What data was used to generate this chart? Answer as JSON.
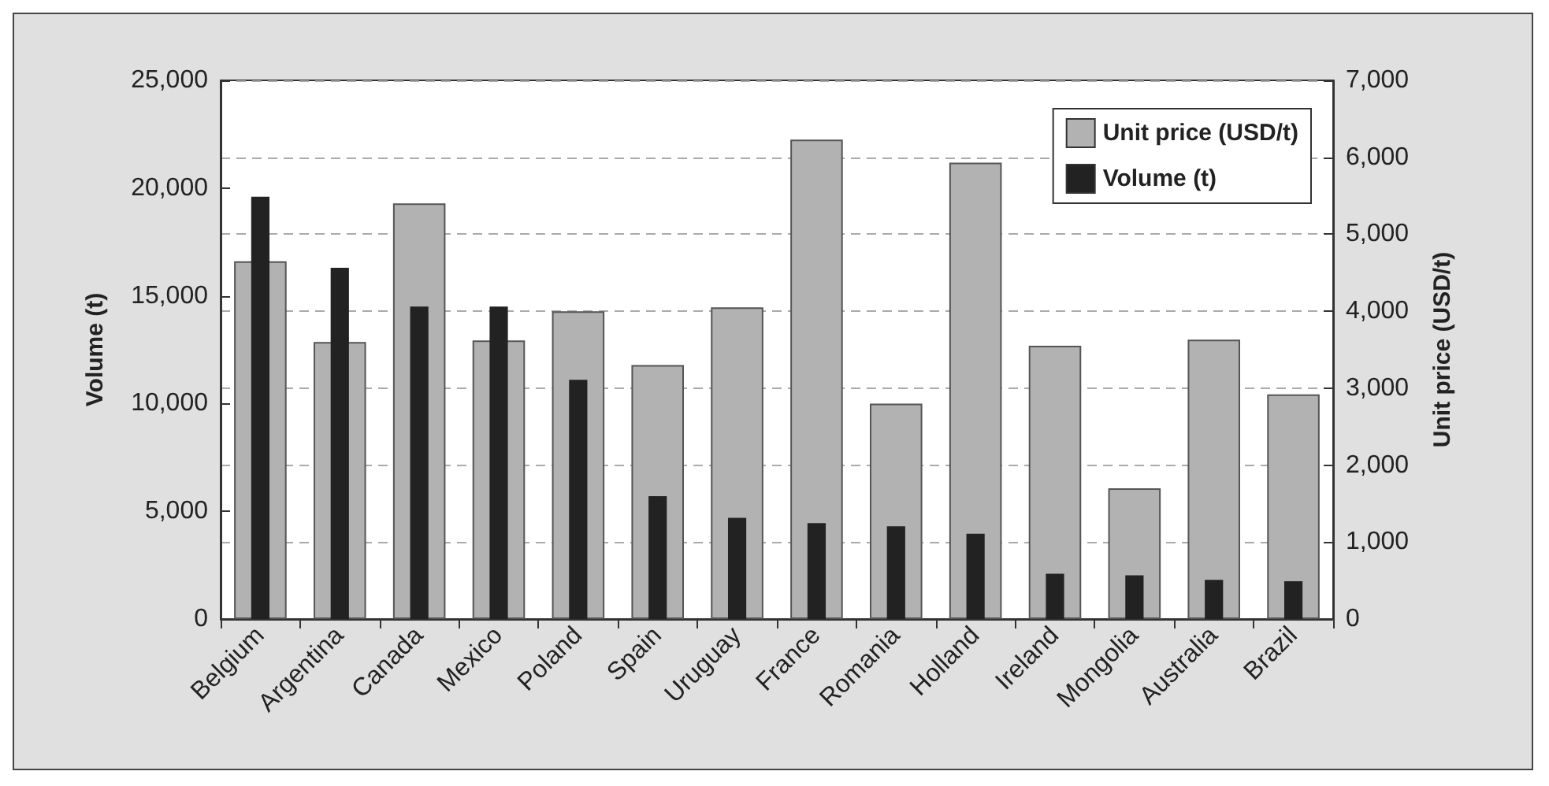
{
  "chart_data": {
    "type": "bar",
    "ylabel": "Volume (t)",
    "y2label": "Unit price (USD/t)",
    "categories": [
      "Belgium",
      "Argentina",
      "Canada",
      "Mexico",
      "Poland",
      "Spain",
      "Uruguay",
      "France",
      "Romania",
      "Holland",
      "Ireland",
      "Mongolia",
      "Australia",
      "Brazil"
    ],
    "series": [
      {
        "name": "Unit price (USD/t)",
        "color": "#b2b2b2",
        "axis": "y2",
        "values": [
          4650,
          3600,
          5400,
          3620,
          4000,
          3300,
          4050,
          6230,
          2800,
          5930,
          3550,
          1700,
          3630,
          2920
        ]
      },
      {
        "name": "Volume (t)",
        "color": "#222222",
        "values": [
          19600,
          16300,
          14500,
          14500,
          11100,
          5700,
          4700,
          4450,
          4300,
          3960,
          2100,
          2030,
          1820,
          1750
        ]
      }
    ],
    "ylim": [
      0,
      25000
    ],
    "yticks": [
      0,
      {
        "value": 5000,
        "label": "5,000"
      },
      {
        "value": 10000,
        "label": "10,000"
      },
      {
        "value": 15000,
        "label": "15,000"
      },
      {
        "value": 20000,
        "label": "20,000"
      },
      {
        "value": 25000,
        "label": "25,000"
      }
    ],
    "y2lim": [
      0,
      7000
    ],
    "y2ticks": [
      0,
      {
        "value": 1000,
        "label": "1,000"
      },
      {
        "value": 2000,
        "label": "2,000"
      },
      {
        "value": 3000,
        "label": "3,000"
      },
      {
        "value": 4000,
        "label": "4,000"
      },
      {
        "value": 5000,
        "label": "5,000"
      },
      {
        "value": 6000,
        "label": "6,000"
      },
      {
        "value": 7000,
        "label": "7,000"
      }
    ],
    "grid": true,
    "legend": "top right"
  }
}
